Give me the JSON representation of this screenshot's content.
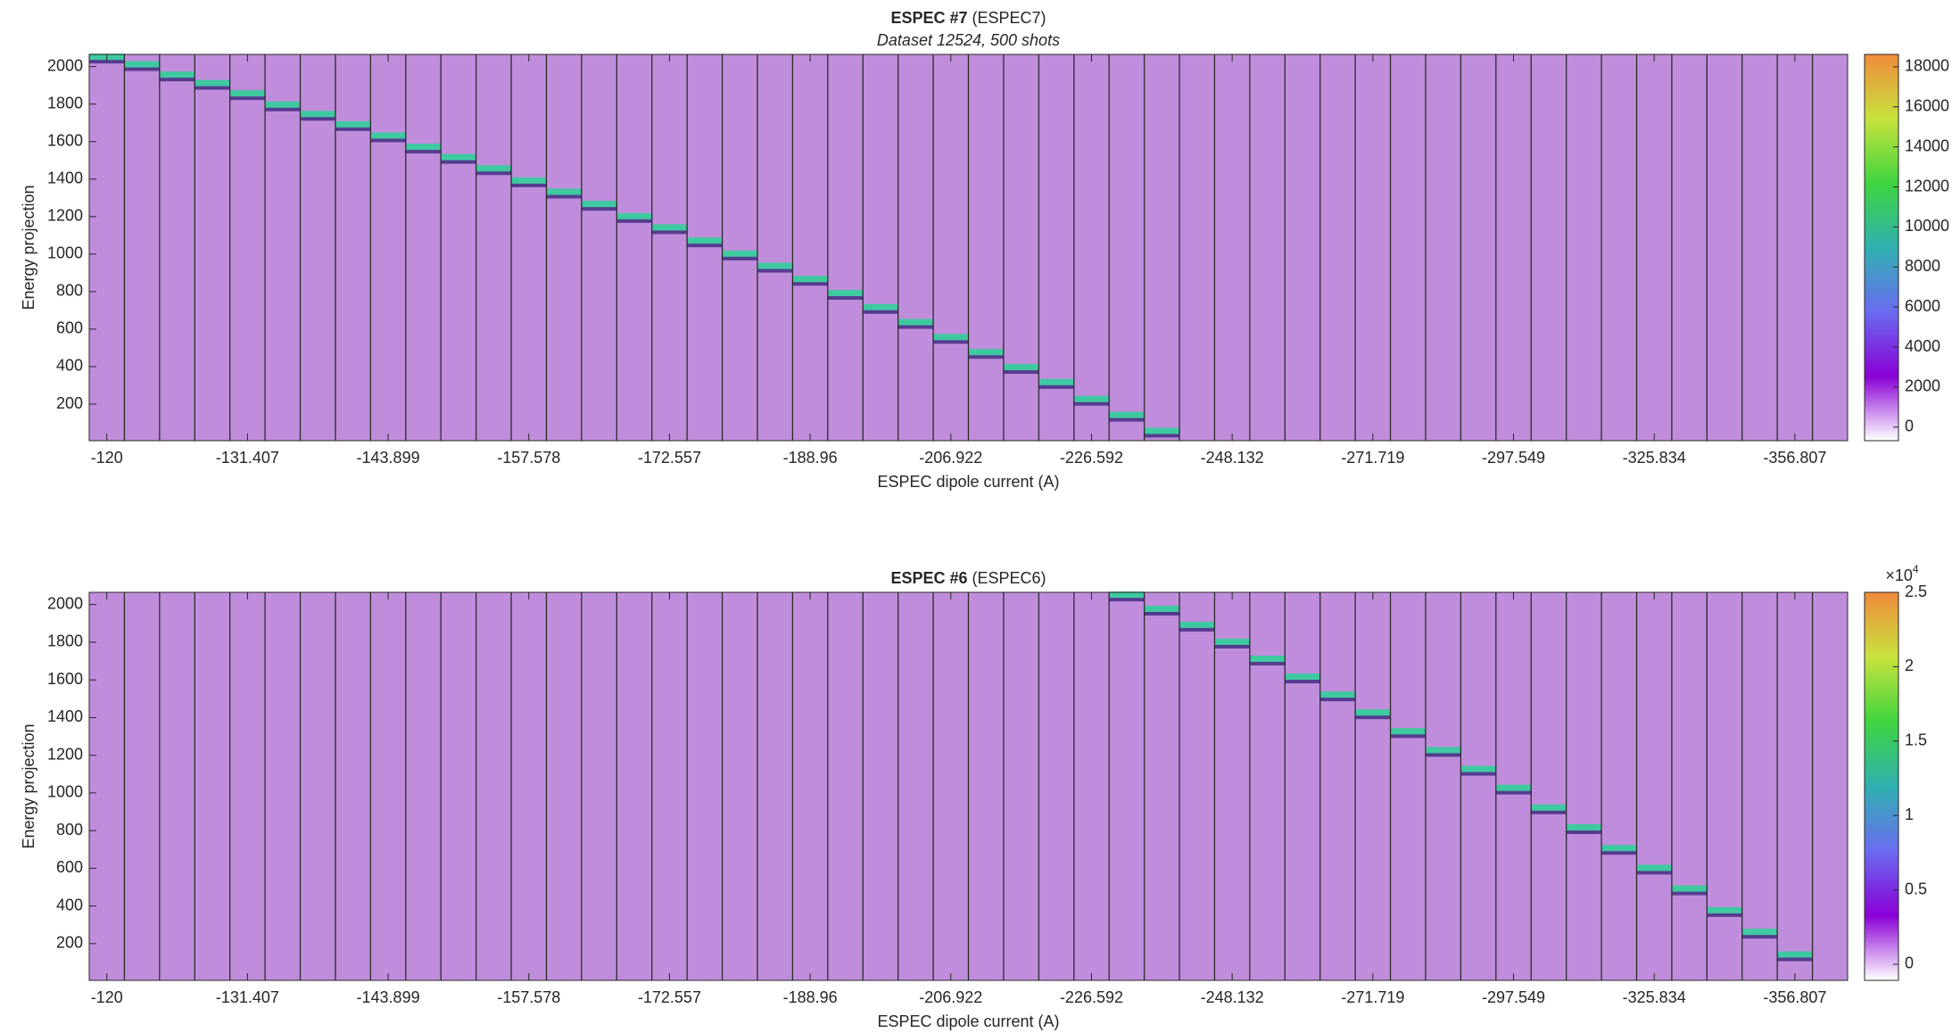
{
  "chart_data": [
    {
      "type": "heatmap",
      "title_bold": "ESPEC #7",
      "title": "(ESPEC7)",
      "subtitle": "Dataset 12524, 500 shots",
      "xlabel": "ESPEC dipole current (A)",
      "ylabel": "Energy projection",
      "categories": [
        "-120",
        null,
        null,
        null,
        "-131.407",
        null,
        null,
        null,
        "-143.899",
        null,
        null,
        null,
        "-157.578",
        null,
        null,
        null,
        "-172.557",
        null,
        null,
        null,
        "-188.96",
        null,
        null,
        null,
        "-206.922",
        null,
        null,
        null,
        "-226.592",
        null,
        null,
        null,
        "-248.132",
        null,
        null,
        null,
        "-271.719",
        null,
        null,
        null,
        "-297.549",
        null,
        null,
        null,
        "-325.834",
        null,
        null,
        null,
        "-356.807",
        null
      ],
      "values": [
        2050,
        2010,
        1955,
        1910,
        1855,
        1795,
        1745,
        1690,
        1630,
        1570,
        1515,
        1455,
        1390,
        1330,
        1265,
        1200,
        1140,
        1070,
        1000,
        935,
        865,
        790,
        715,
        635,
        555,
        475,
        395,
        315,
        225,
        140,
        55,
        null,
        null,
        null,
        null,
        null,
        null,
        null,
        null,
        null,
        null,
        null,
        null,
        null,
        null,
        null,
        null,
        null,
        null,
        null
      ],
      "ylim": [
        5,
        2065
      ],
      "yticks": [
        200,
        400,
        600,
        800,
        1000,
        1200,
        1400,
        1600,
        1800,
        2000
      ],
      "background": "#c08ddc",
      "color": "#3fc9a0",
      "colorbar": {
        "clim": [
          -680,
          18620
        ],
        "ticks": [
          0,
          2000,
          4000,
          6000,
          8000,
          10000,
          12000,
          14000,
          16000,
          18000
        ],
        "colors": [
          "#ffffff",
          "#8a00d6",
          "#6a6cf0",
          "#2fb0b0",
          "#3fd43f",
          "#c8e23c",
          "#f08a3c"
        ]
      }
    },
    {
      "type": "heatmap",
      "title_bold": "ESPEC #6",
      "title": "(ESPEC6)",
      "xlabel": "ESPEC dipole current (A)",
      "ylabel": "Energy projection",
      "categories": [
        "-120",
        null,
        null,
        null,
        "-131.407",
        null,
        null,
        null,
        "-143.899",
        null,
        null,
        null,
        "-157.578",
        null,
        null,
        null,
        "-172.557",
        null,
        null,
        null,
        "-188.96",
        null,
        null,
        null,
        "-206.922",
        null,
        null,
        null,
        "-226.592",
        null,
        null,
        null,
        "-248.132",
        null,
        null,
        null,
        "-271.719",
        null,
        null,
        null,
        "-297.549",
        null,
        null,
        null,
        "-325.834",
        null,
        null,
        null,
        "-356.807",
        null
      ],
      "values": [
        null,
        null,
        null,
        null,
        null,
        null,
        null,
        null,
        null,
        null,
        null,
        null,
        null,
        null,
        null,
        null,
        null,
        null,
        null,
        null,
        null,
        null,
        null,
        null,
        null,
        null,
        null,
        null,
        null,
        2050,
        1975,
        1890,
        1800,
        1710,
        1615,
        1520,
        1425,
        1325,
        1225,
        1125,
        1025,
        920,
        815,
        705,
        600,
        490,
        375,
        260,
        140,
        null
      ],
      "ylim": [
        5,
        2065
      ],
      "yticks": [
        200,
        400,
        600,
        800,
        1000,
        1200,
        1400,
        1600,
        1800,
        2000
      ],
      "background": "#c08ddc",
      "color": "#3fc9a0",
      "colorbar": {
        "clim": [
          -1080,
          25000
        ],
        "ticks": [
          {
            "value": 0,
            "label": "0"
          },
          {
            "value": 5000,
            "label": "0.5"
          },
          {
            "value": 10000,
            "label": "1"
          },
          {
            "value": 15000,
            "label": "1.5"
          },
          {
            "value": 20000,
            "label": "2"
          },
          {
            "value": 25000,
            "label": "2.5"
          }
        ],
        "multiplier": "×10",
        "exponent": "4",
        "colors": [
          "#ffffff",
          "#8a00d6",
          "#6a6cf0",
          "#2fb0b0",
          "#3fd43f",
          "#c8e23c",
          "#f08a3c"
        ]
      }
    }
  ]
}
